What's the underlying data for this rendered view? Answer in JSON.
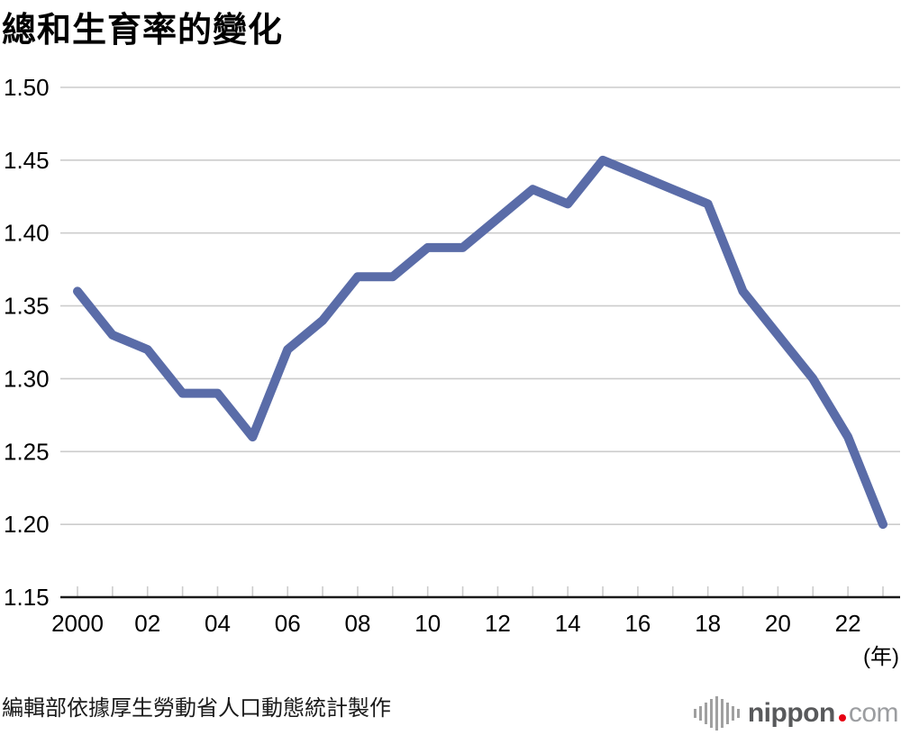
{
  "title": "總和生育率的變化",
  "source_note": "編輯部依據厚生勞動省人口動態統計製作",
  "logo": {
    "icon": "soundwave-icon",
    "name": "nippon",
    "dot": ".",
    "tld": "com"
  },
  "colors": {
    "line": "#5a6ca8",
    "grid": "#cccccc",
    "axis": "#1a1a1a",
    "text": "#000000",
    "logo_dark": "#58595b",
    "logo_light": "#9b9da0",
    "logo_red": "#e60012"
  },
  "chart_data": {
    "type": "line",
    "title": "總和生育率的變化",
    "x": [
      2000,
      2001,
      2002,
      2003,
      2004,
      2005,
      2006,
      2007,
      2008,
      2009,
      2010,
      2011,
      2012,
      2013,
      2014,
      2015,
      2016,
      2017,
      2018,
      2019,
      2020,
      2021,
      2022,
      2023
    ],
    "series": [
      {
        "name": "總和生育率",
        "values": [
          1.36,
          1.33,
          1.32,
          1.29,
          1.29,
          1.26,
          1.32,
          1.34,
          1.37,
          1.37,
          1.39,
          1.39,
          1.41,
          1.43,
          1.42,
          1.45,
          1.44,
          1.43,
          1.42,
          1.36,
          1.33,
          1.3,
          1.26,
          1.2
        ]
      }
    ],
    "xlabel": "(年)",
    "ylabel": "",
    "ylim": [
      1.15,
      1.5
    ],
    "ytick_step": 0.05,
    "xtick_years": [
      2000,
      2002,
      2004,
      2006,
      2008,
      2010,
      2012,
      2014,
      2016,
      2018,
      2020,
      2022
    ],
    "xtick_labels": [
      "2000",
      "02",
      "04",
      "06",
      "08",
      "10",
      "12",
      "14",
      "16",
      "18",
      "20",
      "22"
    ],
    "grid": "horizontal",
    "legend": "none"
  }
}
